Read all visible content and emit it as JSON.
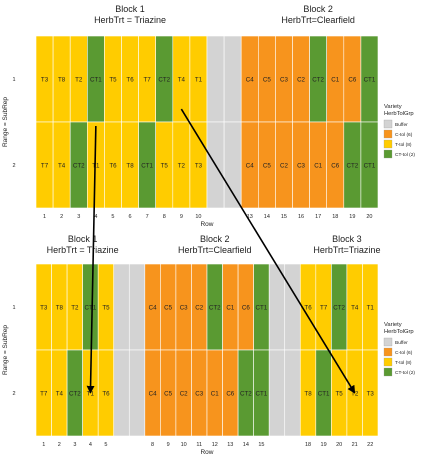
{
  "colors": {
    "buffer": "#d3d3d3",
    "ctol": "#f7941d",
    "ttol": "#ffcc00",
    "cttol": "#5a9a32",
    "grid": "#ffffff",
    "text": "#222222",
    "arrow": "#000000"
  },
  "legend_entries": [
    {
      "key": "buffer",
      "label": "Buffer"
    },
    {
      "key": "ctol",
      "label": "C-tol (6)"
    },
    {
      "key": "ttol",
      "label": "T-tol (8)"
    },
    {
      "key": "cttol",
      "label": "CT-tol (2)"
    }
  ],
  "layouts": [
    {
      "id": "top",
      "columns": 20,
      "ylabel": "Range = SubRep",
      "xlabel": "Row",
      "row_labels": [
        "1",
        "2"
      ],
      "col_labels": [
        "1",
        "2",
        "3",
        "4",
        "5",
        "6",
        "7",
        "8",
        "9",
        "10",
        "",
        "",
        "13",
        "14",
        "15",
        "16",
        "17",
        "18",
        "19",
        "20"
      ],
      "blocks": [
        {
          "title": "Block 1",
          "sub": "HerbTrt = Triazine",
          "center_col": 5.5
        },
        {
          "title": "Block 2",
          "sub": "HerbTrt=Clearfield",
          "center_col": 16.5
        }
      ],
      "legend_title": [
        "Variety",
        "HerbTolGrp"
      ],
      "rows": [
        {
          "cells": [
            {
              "t": "ttol",
              "label": "T3"
            },
            {
              "t": "ttol",
              "label": "T8"
            },
            {
              "t": "ttol",
              "label": "T2"
            },
            {
              "t": "cttol",
              "label": "CT1"
            },
            {
              "t": "ttol",
              "label": "T5"
            },
            {
              "t": "ttol",
              "label": "T6"
            },
            {
              "t": "ttol",
              "label": "T7"
            },
            {
              "t": "cttol",
              "label": "CT2"
            },
            {
              "t": "ttol",
              "label": "T4"
            },
            {
              "t": "ttol",
              "label": "T1"
            },
            {
              "t": "buffer",
              "label": ""
            },
            {
              "t": "buffer",
              "label": ""
            },
            {
              "t": "ctol",
              "label": "C4"
            },
            {
              "t": "ctol",
              "label": "C5"
            },
            {
              "t": "ctol",
              "label": "C3"
            },
            {
              "t": "ctol",
              "label": "C2"
            },
            {
              "t": "cttol",
              "label": "CT2"
            },
            {
              "t": "ctol",
              "label": "C1"
            },
            {
              "t": "ctol",
              "label": "C6"
            },
            {
              "t": "cttol",
              "label": "CT1"
            }
          ]
        },
        {
          "cells": [
            {
              "t": "ttol",
              "label": "T7"
            },
            {
              "t": "ttol",
              "label": "T4"
            },
            {
              "t": "cttol",
              "label": "CT2"
            },
            {
              "t": "ttol",
              "label": "T1"
            },
            {
              "t": "ttol",
              "label": "T6"
            },
            {
              "t": "ttol",
              "label": "T8"
            },
            {
              "t": "cttol",
              "label": "CT1"
            },
            {
              "t": "ttol",
              "label": "T5"
            },
            {
              "t": "ttol",
              "label": "T2"
            },
            {
              "t": "ttol",
              "label": "T3"
            },
            {
              "t": "buffer",
              "label": ""
            },
            {
              "t": "buffer",
              "label": ""
            },
            {
              "t": "ctol",
              "label": "C4"
            },
            {
              "t": "ctol",
              "label": "C5"
            },
            {
              "t": "ctol",
              "label": "C2"
            },
            {
              "t": "ctol",
              "label": "C3"
            },
            {
              "t": "ctol",
              "label": "C1"
            },
            {
              "t": "ctol",
              "label": "C6"
            },
            {
              "t": "cttol",
              "label": "CT2"
            },
            {
              "t": "cttol",
              "label": "CT1"
            }
          ]
        }
      ]
    },
    {
      "id": "bottom",
      "columns": 22,
      "ylabel": "Range = SubRep",
      "xlabel": "Row",
      "row_labels": [
        "1",
        "2"
      ],
      "col_labels": [
        "1",
        "2",
        "3",
        "4",
        "5",
        "",
        "",
        "8",
        "9",
        "10",
        "11",
        "12",
        "13",
        "14",
        "15",
        "",
        "",
        "18",
        "19",
        "20",
        "21",
        "22"
      ],
      "blocks": [
        {
          "title": "Block 1",
          "sub": "HerbTrt = Triazine",
          "center_col": 3
        },
        {
          "title": "Block 2",
          "sub": "HerbTrt=Clearfield",
          "center_col": 11.5
        },
        {
          "title": "Block 3",
          "sub": "HerbTrt=Triazine",
          "center_col": 20
        }
      ],
      "legend_title": [
        "Variety",
        "HerbTolGrp"
      ],
      "rows": [
        {
          "cells": [
            {
              "t": "ttol",
              "label": "T3"
            },
            {
              "t": "ttol",
              "label": "T8"
            },
            {
              "t": "ttol",
              "label": "T2"
            },
            {
              "t": "cttol",
              "label": "CT1"
            },
            {
              "t": "ttol",
              "label": "T5"
            },
            {
              "t": "buffer",
              "label": ""
            },
            {
              "t": "buffer",
              "label": ""
            },
            {
              "t": "ctol",
              "label": "C4"
            },
            {
              "t": "ctol",
              "label": "C5"
            },
            {
              "t": "ctol",
              "label": "C3"
            },
            {
              "t": "ctol",
              "label": "C2"
            },
            {
              "t": "cttol",
              "label": "CT2"
            },
            {
              "t": "ctol",
              "label": "C1"
            },
            {
              "t": "ctol",
              "label": "C6"
            },
            {
              "t": "cttol",
              "label": "CT1"
            },
            {
              "t": "buffer",
              "label": ""
            },
            {
              "t": "buffer",
              "label": ""
            },
            {
              "t": "ttol",
              "label": "T6"
            },
            {
              "t": "ttol",
              "label": "T7"
            },
            {
              "t": "cttol",
              "label": "CT2"
            },
            {
              "t": "ttol",
              "label": "T4"
            },
            {
              "t": "ttol",
              "label": "T1"
            }
          ]
        },
        {
          "cells": [
            {
              "t": "ttol",
              "label": "T7"
            },
            {
              "t": "ttol",
              "label": "T4"
            },
            {
              "t": "cttol",
              "label": "CT2"
            },
            {
              "t": "ttol",
              "label": "T1"
            },
            {
              "t": "ttol",
              "label": "T6"
            },
            {
              "t": "buffer",
              "label": ""
            },
            {
              "t": "buffer",
              "label": ""
            },
            {
              "t": "ctol",
              "label": "C4"
            },
            {
              "t": "ctol",
              "label": "C5"
            },
            {
              "t": "ctol",
              "label": "C2"
            },
            {
              "t": "ctol",
              "label": "C3"
            },
            {
              "t": "ctol",
              "label": "C1"
            },
            {
              "t": "ctol",
              "label": "C6"
            },
            {
              "t": "cttol",
              "label": "CT2"
            },
            {
              "t": "cttol",
              "label": "CT1"
            },
            {
              "t": "buffer",
              "label": ""
            },
            {
              "t": "buffer",
              "label": ""
            },
            {
              "t": "ttol",
              "label": "T8"
            },
            {
              "t": "cttol",
              "label": "CT1"
            },
            {
              "t": "ttol",
              "label": "T5"
            },
            {
              "t": "ttol",
              "label": "T2"
            },
            {
              "t": "ttol",
              "label": "T3"
            }
          ]
        }
      ]
    }
  ],
  "arrows": [
    {
      "from": {
        "layout": 0,
        "row": 1,
        "col": 3
      },
      "to": {
        "layout": 1,
        "row": 1,
        "col": 3
      }
    },
    {
      "from": {
        "layout": 0,
        "row": 0,
        "col": 8
      },
      "to": {
        "layout": 1,
        "row": 1,
        "col": 20
      }
    }
  ]
}
